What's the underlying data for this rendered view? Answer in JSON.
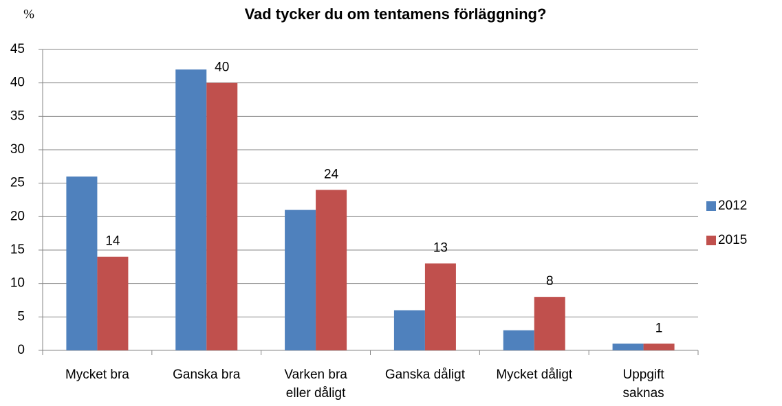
{
  "chart_data": {
    "type": "bar",
    "title": "Vad tycker du om tentamens förläggning?",
    "y_label": "%",
    "categories": [
      "Mycket bra",
      "Ganska bra",
      "Varken bra eller dåligt",
      "Ganska dåligt",
      "Mycket dåligt",
      "Uppgift saknas"
    ],
    "series": [
      {
        "name": "2012",
        "color": "#4f81bd",
        "values": [
          26,
          42,
          21,
          6,
          3,
          1
        ],
        "data_labels": false
      },
      {
        "name": "2015",
        "color": "#c0504d",
        "values": [
          14,
          40,
          24,
          13,
          8,
          1
        ],
        "data_labels": true
      }
    ],
    "ylim": [
      0,
      45
    ],
    "yticks": [
      0,
      5,
      10,
      15,
      20,
      25,
      30,
      35,
      40,
      45
    ],
    "grid": true,
    "legend": "right"
  }
}
